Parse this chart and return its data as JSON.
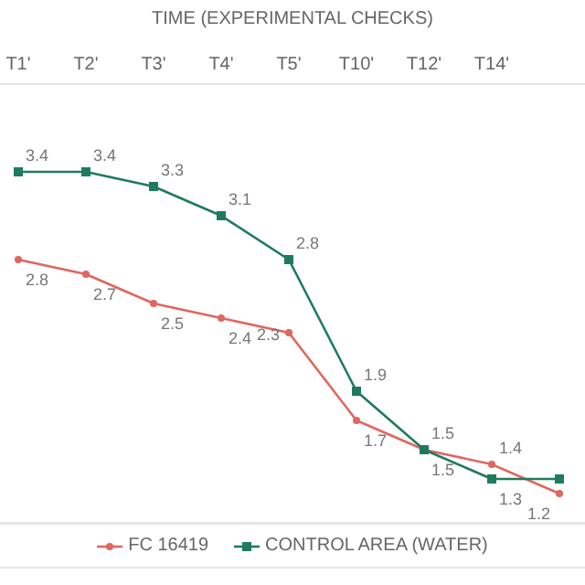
{
  "chart_data": {
    "type": "line",
    "xlabel": "TIME (EXPERIMENTAL CHECKS)",
    "categories": [
      "T1'",
      "T2'",
      "T3'",
      "T4'",
      "T5'",
      "T10'",
      "T12'",
      "T14'",
      null
    ],
    "series": [
      {
        "name": "FC 16419",
        "color": "#e06660",
        "marker": "circle",
        "values": [
          2.8,
          2.7,
          2.5,
          2.4,
          2.3,
          1.7,
          1.5,
          1.4,
          1.2
        ],
        "value_labels": [
          "2.8",
          "2.7",
          "2.5",
          "2.4",
          "2.3",
          "1.7",
          "1.5",
          "1.4",
          "1.2"
        ]
      },
      {
        "name": "CONTROL AREA (WATER)",
        "color": "#1e7b5e",
        "marker": "square",
        "values": [
          3.4,
          3.4,
          3.3,
          3.1,
          2.8,
          1.9,
          1.5,
          1.3,
          1.3
        ],
        "value_labels": [
          "3.4",
          "3.4",
          "3.3",
          "3.1",
          "2.8",
          "1.9",
          "1.5",
          "1.3",
          null
        ]
      }
    ],
    "ylim": [
      1,
      4
    ],
    "grid": "y",
    "tick_labels": "x",
    "legend": "bottom"
  }
}
